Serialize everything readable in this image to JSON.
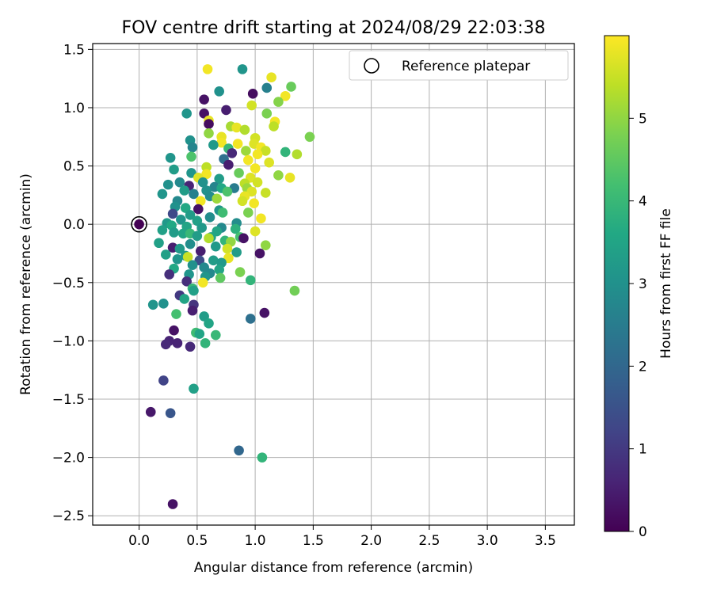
{
  "chart_data": {
    "type": "scatter",
    "title": "FOV centre drift starting at 2024/08/29 22:03:38",
    "xlabel": "Angular distance from reference (arcmin)",
    "ylabel": "Rotation from reference (arcmin)",
    "xlim": [
      -0.4,
      3.75
    ],
    "ylim": [
      -2.58,
      1.55
    ],
    "xticks": [
      0.0,
      0.5,
      1.0,
      1.5,
      2.0,
      2.5,
      3.0,
      3.5
    ],
    "xtick_labels": [
      "0.0",
      "0.5",
      "1.0",
      "1.5",
      "2.0",
      "2.5",
      "3.0",
      "3.5"
    ],
    "yticks": [
      1.5,
      1.0,
      0.5,
      0.0,
      -0.5,
      -1.0,
      -1.5,
      -2.0,
      -2.5
    ],
    "ytick_labels": [
      "1.5",
      "1.0",
      "0.5",
      "0.0",
      "−0.5",
      "−1.0",
      "−1.5",
      "−2.0",
      "−2.5"
    ],
    "grid": true,
    "colormap": "viridis",
    "colorbar": {
      "label": "Hours from first FF file",
      "range": [
        0,
        6
      ],
      "ticks": [
        0,
        1,
        2,
        3,
        4,
        5
      ],
      "tick_labels": [
        "0",
        "1",
        "2",
        "3",
        "4",
        "5"
      ]
    },
    "legend": {
      "position": "top-right",
      "entries": [
        "Reference platepar"
      ]
    },
    "reference_point": {
      "x": 0.0,
      "y": 0.0,
      "hours": 0.0
    },
    "points": [
      {
        "x": 0.59,
        "y": 1.33,
        "h": 5.9
      },
      {
        "x": 0.89,
        "y": 1.33,
        "h": 3.1
      },
      {
        "x": 1.14,
        "y": 1.26,
        "h": 5.8
      },
      {
        "x": 1.31,
        "y": 1.18,
        "h": 4.6
      },
      {
        "x": 1.1,
        "y": 1.17,
        "h": 2.6
      },
      {
        "x": 0.98,
        "y": 1.12,
        "h": 0.2
      },
      {
        "x": 0.69,
        "y": 1.14,
        "h": 3.0
      },
      {
        "x": 1.26,
        "y": 1.1,
        "h": 5.9
      },
      {
        "x": 0.56,
        "y": 1.07,
        "h": 0.3
      },
      {
        "x": 1.2,
        "y": 1.05,
        "h": 4.9
      },
      {
        "x": 0.97,
        "y": 1.02,
        "h": 5.6
      },
      {
        "x": 0.75,
        "y": 0.98,
        "h": 0.5
      },
      {
        "x": 0.56,
        "y": 0.95,
        "h": 0.3
      },
      {
        "x": 0.41,
        "y": 0.95,
        "h": 3.1
      },
      {
        "x": 1.1,
        "y": 0.95,
        "h": 4.8
      },
      {
        "x": 0.6,
        "y": 0.89,
        "h": 5.8
      },
      {
        "x": 1.17,
        "y": 0.88,
        "h": 5.9
      },
      {
        "x": 0.6,
        "y": 0.86,
        "h": 0.2
      },
      {
        "x": 0.79,
        "y": 0.84,
        "h": 5.2
      },
      {
        "x": 0.84,
        "y": 0.83,
        "h": 5.8
      },
      {
        "x": 0.91,
        "y": 0.81,
        "h": 5.3
      },
      {
        "x": 1.16,
        "y": 0.84,
        "h": 5.4
      },
      {
        "x": 0.6,
        "y": 0.78,
        "h": 5.0
      },
      {
        "x": 0.71,
        "y": 0.75,
        "h": 5.8
      },
      {
        "x": 1.0,
        "y": 0.74,
        "h": 5.6
      },
      {
        "x": 1.47,
        "y": 0.75,
        "h": 4.8
      },
      {
        "x": 0.44,
        "y": 0.72,
        "h": 3.0
      },
      {
        "x": 0.71,
        "y": 0.7,
        "h": 5.9
      },
      {
        "x": 0.64,
        "y": 0.68,
        "h": 3.2
      },
      {
        "x": 0.85,
        "y": 0.69,
        "h": 5.9
      },
      {
        "x": 0.99,
        "y": 0.69,
        "h": 5.7
      },
      {
        "x": 1.05,
        "y": 0.66,
        "h": 5.9
      },
      {
        "x": 0.46,
        "y": 0.66,
        "h": 2.7
      },
      {
        "x": 0.77,
        "y": 0.65,
        "h": 4.0
      },
      {
        "x": 0.92,
        "y": 0.63,
        "h": 5.1
      },
      {
        "x": 1.09,
        "y": 0.63,
        "h": 5.5
      },
      {
        "x": 1.26,
        "y": 0.62,
        "h": 3.9
      },
      {
        "x": 0.8,
        "y": 0.61,
        "h": 0.7
      },
      {
        "x": 1.02,
        "y": 0.6,
        "h": 5.9
      },
      {
        "x": 1.36,
        "y": 0.6,
        "h": 5.3
      },
      {
        "x": 0.27,
        "y": 0.57,
        "h": 3.1
      },
      {
        "x": 0.45,
        "y": 0.58,
        "h": 4.3
      },
      {
        "x": 0.73,
        "y": 0.56,
        "h": 2.2
      },
      {
        "x": 0.94,
        "y": 0.55,
        "h": 5.9
      },
      {
        "x": 1.12,
        "y": 0.53,
        "h": 5.7
      },
      {
        "x": 0.77,
        "y": 0.51,
        "h": 0.5
      },
      {
        "x": 0.58,
        "y": 0.49,
        "h": 5.4
      },
      {
        "x": 1.0,
        "y": 0.48,
        "h": 5.9
      },
      {
        "x": 0.3,
        "y": 0.47,
        "h": 3.3
      },
      {
        "x": 0.45,
        "y": 0.44,
        "h": 3.1
      },
      {
        "x": 0.58,
        "y": 0.43,
        "h": 5.9
      },
      {
        "x": 0.86,
        "y": 0.44,
        "h": 4.6
      },
      {
        "x": 1.2,
        "y": 0.42,
        "h": 5.0
      },
      {
        "x": 0.51,
        "y": 0.4,
        "h": 5.7
      },
      {
        "x": 0.69,
        "y": 0.39,
        "h": 3.3
      },
      {
        "x": 0.96,
        "y": 0.4,
        "h": 5.7
      },
      {
        "x": 1.3,
        "y": 0.4,
        "h": 5.8
      },
      {
        "x": 0.35,
        "y": 0.36,
        "h": 2.8
      },
      {
        "x": 0.55,
        "y": 0.36,
        "h": 3.0
      },
      {
        "x": 0.91,
        "y": 0.35,
        "h": 5.4
      },
      {
        "x": 1.02,
        "y": 0.36,
        "h": 5.6
      },
      {
        "x": 0.25,
        "y": 0.34,
        "h": 3.0
      },
      {
        "x": 0.43,
        "y": 0.33,
        "h": 0.6
      },
      {
        "x": 0.65,
        "y": 0.32,
        "h": 2.7
      },
      {
        "x": 0.71,
        "y": 0.31,
        "h": 3.6
      },
      {
        "x": 0.82,
        "y": 0.31,
        "h": 2.5
      },
      {
        "x": 0.93,
        "y": 0.31,
        "h": 5.1
      },
      {
        "x": 0.39,
        "y": 0.29,
        "h": 3.3
      },
      {
        "x": 0.58,
        "y": 0.29,
        "h": 3.0
      },
      {
        "x": 0.76,
        "y": 0.28,
        "h": 4.3
      },
      {
        "x": 0.97,
        "y": 0.28,
        "h": 5.7
      },
      {
        "x": 1.09,
        "y": 0.27,
        "h": 5.5
      },
      {
        "x": 0.2,
        "y": 0.26,
        "h": 3.1
      },
      {
        "x": 0.47,
        "y": 0.26,
        "h": 2.6
      },
      {
        "x": 0.61,
        "y": 0.24,
        "h": 2.9
      },
      {
        "x": 0.91,
        "y": 0.24,
        "h": 5.8
      },
      {
        "x": 0.67,
        "y": 0.22,
        "h": 5.1
      },
      {
        "x": 0.33,
        "y": 0.2,
        "h": 2.8
      },
      {
        "x": 0.53,
        "y": 0.2,
        "h": 5.9
      },
      {
        "x": 0.89,
        "y": 0.2,
        "h": 5.6
      },
      {
        "x": 0.99,
        "y": 0.18,
        "h": 5.9
      },
      {
        "x": 0.31,
        "y": 0.15,
        "h": 3.0
      },
      {
        "x": 0.4,
        "y": 0.14,
        "h": 3.6
      },
      {
        "x": 0.51,
        "y": 0.13,
        "h": 0.3
      },
      {
        "x": 0.69,
        "y": 0.12,
        "h": 3.1
      },
      {
        "x": 0.94,
        "y": 0.1,
        "h": 4.8
      },
      {
        "x": 0.29,
        "y": 0.09,
        "h": 1.3
      },
      {
        "x": 0.44,
        "y": 0.08,
        "h": 3.3
      },
      {
        "x": 0.61,
        "y": 0.06,
        "h": 2.9
      },
      {
        "x": 0.72,
        "y": 0.1,
        "h": 4.1
      },
      {
        "x": 1.05,
        "y": 0.05,
        "h": 5.9
      },
      {
        "x": 0.36,
        "y": 0.04,
        "h": 3.1
      },
      {
        "x": 0.5,
        "y": 0.03,
        "h": 3.4
      },
      {
        "x": 0.24,
        "y": 0.01,
        "h": 3.2
      },
      {
        "x": 0.84,
        "y": 0.01,
        "h": 2.9
      },
      {
        "x": 0.28,
        "y": -0.01,
        "h": 3.6
      },
      {
        "x": 0.41,
        "y": -0.02,
        "h": 3.5
      },
      {
        "x": 0.54,
        "y": -0.03,
        "h": 3.2
      },
      {
        "x": 0.71,
        "y": -0.03,
        "h": 2.8
      },
      {
        "x": 0.83,
        "y": -0.04,
        "h": 3.8
      },
      {
        "x": 0.2,
        "y": -0.05,
        "h": 3.4
      },
      {
        "x": 0.67,
        "y": -0.06,
        "h": 3.5
      },
      {
        "x": 1.0,
        "y": -0.06,
        "h": 5.7
      },
      {
        "x": 0.3,
        "y": -0.07,
        "h": 3.3
      },
      {
        "x": 0.38,
        "y": -0.08,
        "h": 3.5
      },
      {
        "x": 0.44,
        "y": -0.08,
        "h": 4.0
      },
      {
        "x": 0.5,
        "y": -0.1,
        "h": 3.3
      },
      {
        "x": 0.62,
        "y": -0.11,
        "h": 3.5
      },
      {
        "x": 0.87,
        "y": -0.11,
        "h": 4.2
      },
      {
        "x": 0.9,
        "y": -0.12,
        "h": 0.3
      },
      {
        "x": 0.6,
        "y": -0.12,
        "h": 5.3
      },
      {
        "x": 0.74,
        "y": -0.14,
        "h": 3.9
      },
      {
        "x": 0.79,
        "y": -0.15,
        "h": 5.0
      },
      {
        "x": 0.17,
        "y": -0.16,
        "h": 3.4
      },
      {
        "x": 0.44,
        "y": -0.17,
        "h": 2.9
      },
      {
        "x": 1.09,
        "y": -0.18,
        "h": 5.0
      },
      {
        "x": 0.66,
        "y": -0.19,
        "h": 3.2
      },
      {
        "x": 0.29,
        "y": -0.2,
        "h": 0.5
      },
      {
        "x": 0.35,
        "y": -0.21,
        "h": 3.2
      },
      {
        "x": 0.76,
        "y": -0.21,
        "h": 5.6
      },
      {
        "x": 0.53,
        "y": -0.23,
        "h": 0.5
      },
      {
        "x": 0.84,
        "y": -0.24,
        "h": 3.3
      },
      {
        "x": 1.04,
        "y": -0.25,
        "h": 0.3
      },
      {
        "x": 0.23,
        "y": -0.26,
        "h": 3.4
      },
      {
        "x": 0.4,
        "y": -0.27,
        "h": 3.2
      },
      {
        "x": 0.42,
        "y": -0.28,
        "h": 5.5
      },
      {
        "x": 0.77,
        "y": -0.29,
        "h": 5.8
      },
      {
        "x": 0.33,
        "y": -0.3,
        "h": 3.1
      },
      {
        "x": 0.52,
        "y": -0.31,
        "h": 1.4
      },
      {
        "x": 0.64,
        "y": -0.31,
        "h": 3.3
      },
      {
        "x": 0.71,
        "y": -0.33,
        "h": 3.2
      },
      {
        "x": 0.46,
        "y": -0.35,
        "h": 3.0
      },
      {
        "x": 0.3,
        "y": -0.38,
        "h": 3.6
      },
      {
        "x": 0.56,
        "y": -0.37,
        "h": 2.8
      },
      {
        "x": 0.69,
        "y": -0.39,
        "h": 3.5
      },
      {
        "x": 0.87,
        "y": -0.41,
        "h": 4.8
      },
      {
        "x": 0.26,
        "y": -0.43,
        "h": 0.8
      },
      {
        "x": 0.43,
        "y": -0.43,
        "h": 3.1
      },
      {
        "x": 0.61,
        "y": -0.42,
        "h": 2.8
      },
      {
        "x": 0.57,
        "y": -0.45,
        "h": 3.1
      },
      {
        "x": 0.7,
        "y": -0.46,
        "h": 4.5
      },
      {
        "x": 0.96,
        "y": -0.48,
        "h": 3.9
      },
      {
        "x": 0.41,
        "y": -0.49,
        "h": 0.8
      },
      {
        "x": 0.55,
        "y": -0.5,
        "h": 5.9
      },
      {
        "x": 0.46,
        "y": -0.55,
        "h": 4.0
      },
      {
        "x": 0.47,
        "y": -0.57,
        "h": 3.4
      },
      {
        "x": 1.34,
        "y": -0.57,
        "h": 4.7
      },
      {
        "x": 0.35,
        "y": -0.61,
        "h": 1.0
      },
      {
        "x": 0.39,
        "y": -0.64,
        "h": 3.5
      },
      {
        "x": 0.12,
        "y": -0.69,
        "h": 3.1
      },
      {
        "x": 0.21,
        "y": -0.68,
        "h": 3.0
      },
      {
        "x": 0.47,
        "y": -0.69,
        "h": 0.9
      },
      {
        "x": 0.46,
        "y": -0.74,
        "h": 0.5
      },
      {
        "x": 0.32,
        "y": -0.77,
        "h": 4.2
      },
      {
        "x": 1.08,
        "y": -0.76,
        "h": 0.3
      },
      {
        "x": 0.56,
        "y": -0.79,
        "h": 3.3
      },
      {
        "x": 0.96,
        "y": -0.81,
        "h": 2.2
      },
      {
        "x": 0.6,
        "y": -0.85,
        "h": 3.5
      },
      {
        "x": 0.3,
        "y": -0.91,
        "h": 0.3
      },
      {
        "x": 0.49,
        "y": -0.93,
        "h": 4.1
      },
      {
        "x": 0.52,
        "y": -0.94,
        "h": 3.5
      },
      {
        "x": 0.66,
        "y": -0.95,
        "h": 4.0
      },
      {
        "x": 0.26,
        "y": -1.0,
        "h": 0.6
      },
      {
        "x": 0.23,
        "y": -1.03,
        "h": 0.7
      },
      {
        "x": 0.33,
        "y": -1.02,
        "h": 0.6
      },
      {
        "x": 0.44,
        "y": -1.05,
        "h": 0.7
      },
      {
        "x": 0.57,
        "y": -1.02,
        "h": 3.9
      },
      {
        "x": 0.21,
        "y": -1.34,
        "h": 1.2
      },
      {
        "x": 0.47,
        "y": -1.41,
        "h": 3.4
      },
      {
        "x": 0.1,
        "y": -1.61,
        "h": 0.4
      },
      {
        "x": 0.27,
        "y": -1.62,
        "h": 1.6
      },
      {
        "x": 0.86,
        "y": -1.94,
        "h": 2.0
      },
      {
        "x": 1.06,
        "y": -2.0,
        "h": 3.9
      },
      {
        "x": 0.29,
        "y": -2.4,
        "h": 0.3
      }
    ]
  }
}
